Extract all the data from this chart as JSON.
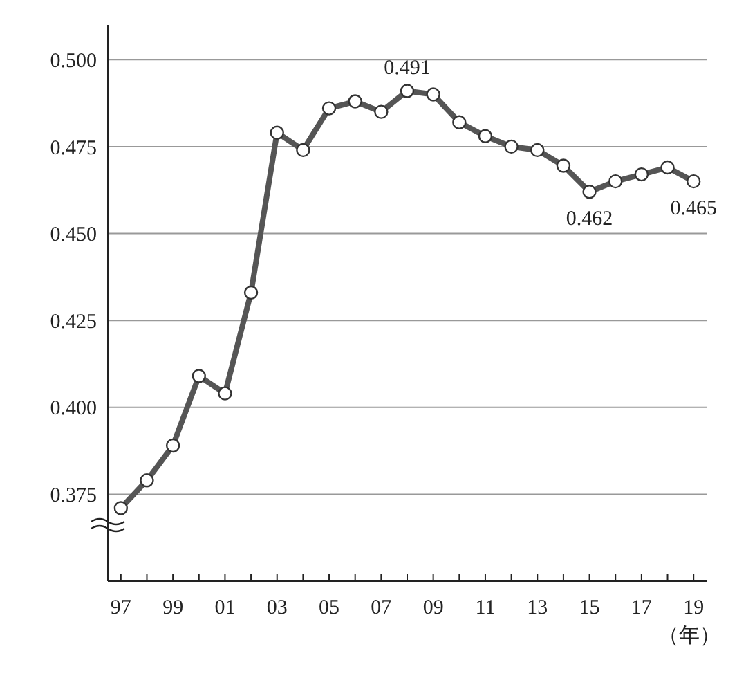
{
  "chart_data": {
    "type": "line",
    "xlabel": "（年）",
    "categories": [
      "97",
      null,
      "99",
      null,
      "01",
      null,
      "03",
      null,
      "05",
      null,
      "07",
      null,
      "09",
      null,
      "11",
      null,
      "13",
      null,
      "15",
      null,
      "17",
      null,
      "19"
    ],
    "series": [
      {
        "color": "#555555",
        "values": [
          0.371,
          0.379,
          0.389,
          0.409,
          0.404,
          0.433,
          0.479,
          0.474,
          0.486,
          0.488,
          0.485,
          0.491,
          0.49,
          0.482,
          0.478,
          0.475,
          0.474,
          0.4695,
          0.462,
          0.465,
          0.467,
          0.469,
          0.465
        ],
        "value_labels": [
          null,
          null,
          null,
          null,
          null,
          null,
          null,
          null,
          null,
          null,
          null,
          "0.491",
          null,
          null,
          null,
          null,
          null,
          null,
          "0.462",
          null,
          null,
          null,
          "0.465"
        ]
      }
    ],
    "ylim": [
      0.35,
      0.51
    ],
    "yticks": [
      0.375,
      {
        "value": 0.4,
        "label": "0.400"
      },
      0.425,
      {
        "value": 0.45,
        "label": "0.450"
      },
      0.475,
      {
        "value": 0.5,
        "label": "0.500"
      }
    ],
    "grid": "y",
    "marker": "circle",
    "line_style": "solid"
  }
}
